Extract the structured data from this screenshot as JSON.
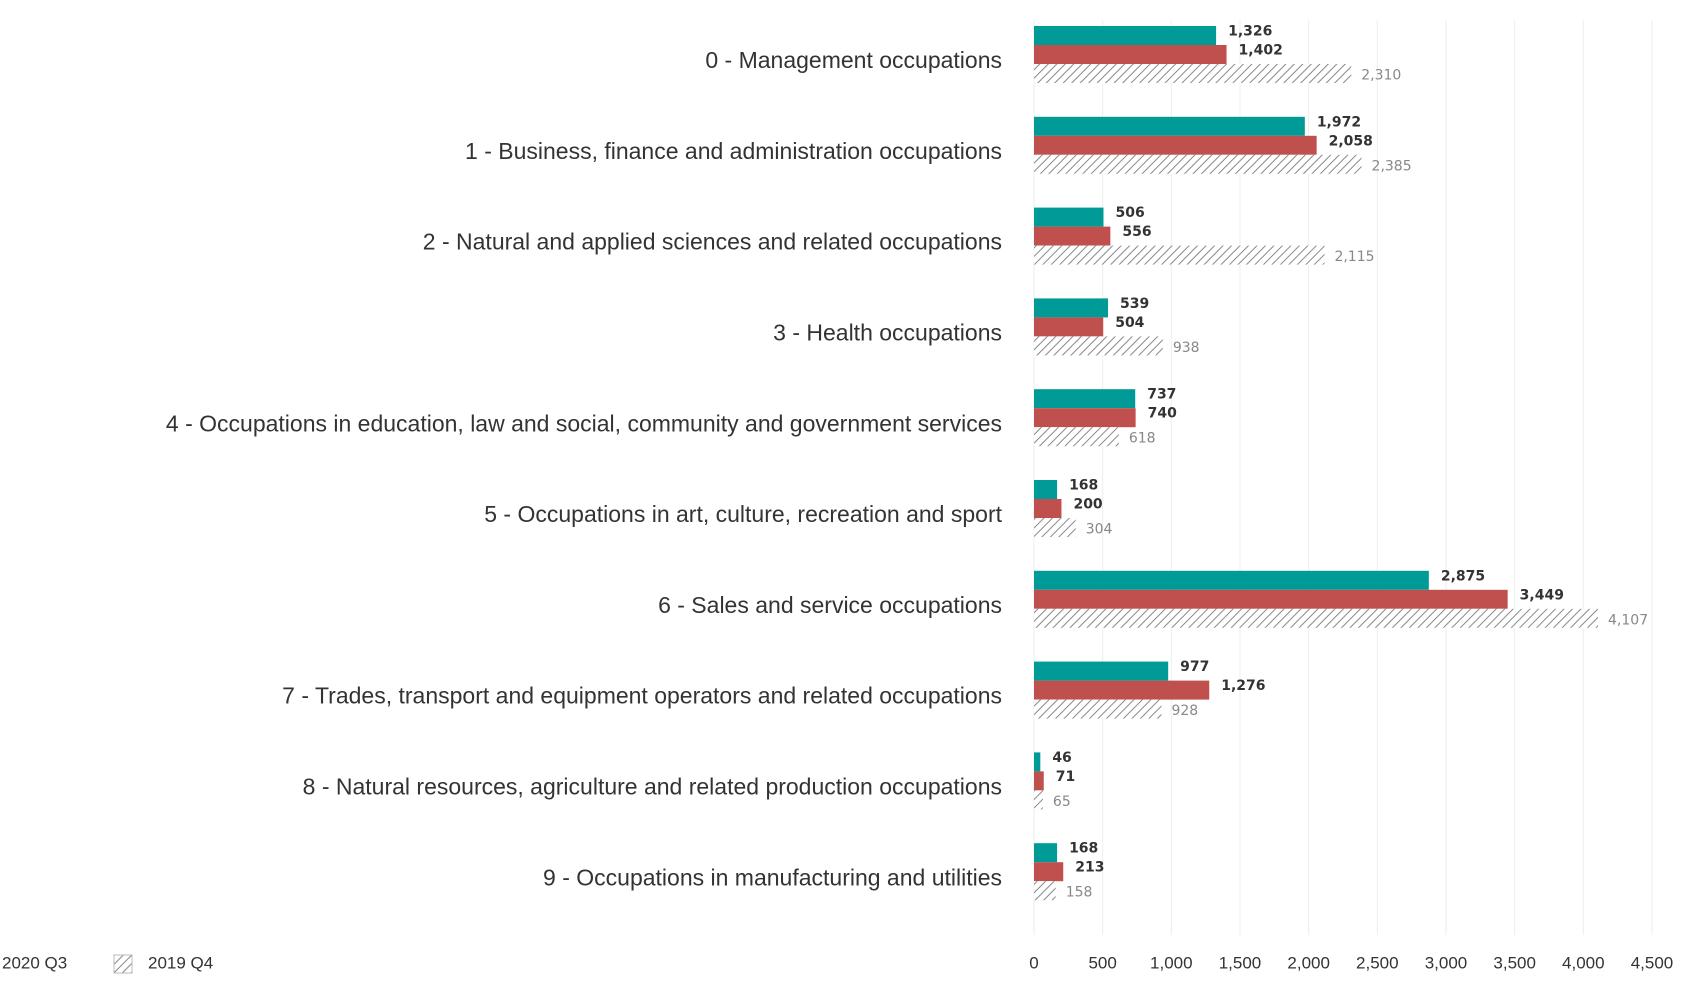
{
  "chart_data": {
    "type": "hbar",
    "categories": [
      "0 - Management occupations",
      "1 - Business, finance and administration occupations",
      "2 - Natural and applied sciences and related occupations",
      "3 - Health occupations",
      "4 - Occupations in education, law and social, community and government services",
      "5 - Occupations in art, culture, recreation and sport",
      "6 - Sales and service occupations",
      "7 - Trades, transport and equipment operators and related occupations",
      "8 - Natural resources, agriculture and related production occupations",
      "9 - Occupations in manufacturing and utilities"
    ],
    "series": [
      {
        "color": "#009b96",
        "values": [
          1326,
          1972,
          506,
          539,
          737,
          168,
          2875,
          977,
          46,
          168
        ],
        "value_labels": [
          "1,326",
          "1,972",
          "506",
          "539",
          "737",
          "168",
          "2,875",
          "977",
          "46",
          "168"
        ]
      },
      {
        "name": "2020 Q3",
        "color": "#c0504d",
        "values": [
          1402,
          2058,
          556,
          504,
          740,
          200,
          3449,
          1276,
          71,
          213
        ],
        "value_labels": [
          "1,402",
          "2,058",
          "556",
          "504",
          "740",
          "200",
          "3,449",
          "1,276",
          "71",
          "213"
        ]
      },
      {
        "name": "2019 Q4",
        "color": "#999999",
        "pattern": "hatch",
        "values": [
          2310,
          2385,
          2115,
          938,
          618,
          304,
          4107,
          928,
          65,
          158
        ],
        "value_labels": [
          "2,310",
          "2,385",
          "2,115",
          "938",
          "618",
          "304",
          "4,107",
          "928",
          "65",
          "158"
        ]
      }
    ],
    "xlim": [
      0,
      4500
    ],
    "xticks": [
      0,
      500,
      {
        "value": 1000,
        "label": "1,000"
      },
      {
        "value": 1500,
        "label": "1,500"
      },
      {
        "value": 2000,
        "label": "2,000"
      },
      {
        "value": 2500,
        "label": "2,500"
      },
      {
        "value": 3000,
        "label": "3,000"
      },
      {
        "value": 3500,
        "label": "3,500"
      },
      {
        "value": 4000,
        "label": "4,000"
      },
      {
        "value": 4500,
        "label": "4,500"
      }
    ],
    "grid": true
  }
}
